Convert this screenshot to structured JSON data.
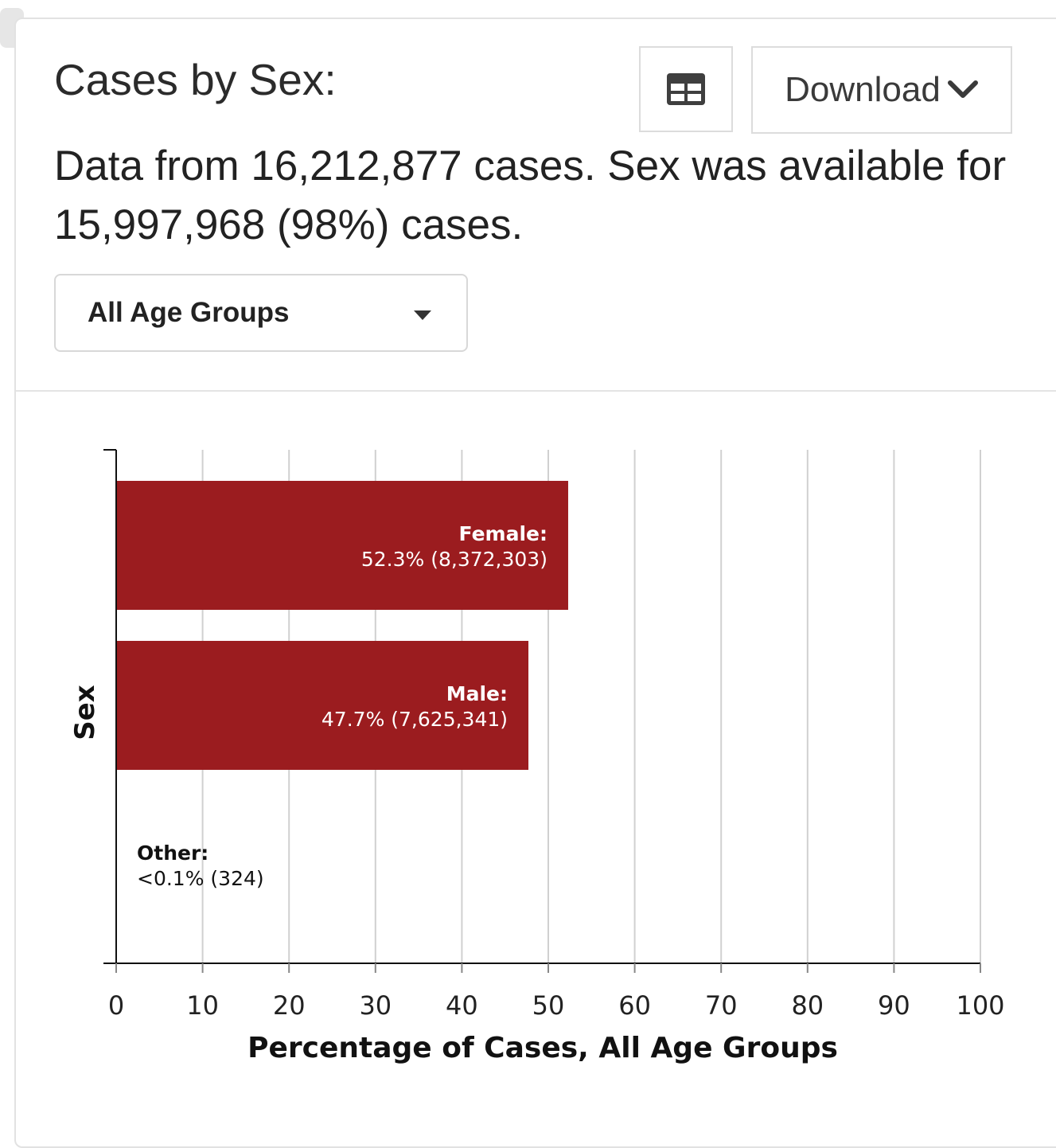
{
  "card": {
    "title": "Cases by Sex:",
    "summary": "Data from 16,212,877 cases. Sex was available for 15,997,968 (98%) cases."
  },
  "toolbar": {
    "table_icon": "table-icon",
    "download_label": "Download",
    "download_icon": "chevron-down-icon"
  },
  "filter": {
    "selected": "All Age Groups",
    "arrow_icon": "caret-down-icon"
  },
  "colors": {
    "bar": "#9b1c1f",
    "grid": "#d0d0d0",
    "axis": "#111111"
  },
  "chart_data": {
    "type": "bar",
    "orientation": "horizontal",
    "categories": [
      "Female",
      "Male",
      "Other"
    ],
    "values": [
      52.3,
      47.7,
      0.002
    ],
    "bar_labels": [
      {
        "name": "Female:",
        "detail": "52.3% (8,372,303)"
      },
      {
        "name": "Male:",
        "detail": "47.7% (7,625,341)"
      },
      {
        "name": "Other:",
        "detail": "<0.1% (324)"
      }
    ],
    "xlabel": "Percentage of Cases, All Age Groups",
    "ylabel": "Sex",
    "xlim": [
      0,
      100
    ],
    "xticks": [
      0,
      10,
      20,
      30,
      40,
      50,
      60,
      70,
      80,
      90,
      100
    ],
    "grid": true,
    "legend": "none"
  }
}
